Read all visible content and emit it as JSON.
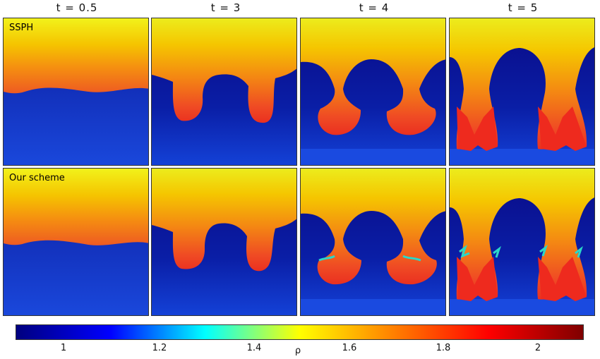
{
  "columns": [
    {
      "time_label": "t = 0.5"
    },
    {
      "time_label": "t = 3"
    },
    {
      "time_label": "t = 4"
    },
    {
      "time_label": "t = 5"
    }
  ],
  "rows": [
    {
      "label": "SSPH"
    },
    {
      "label": "Our scheme"
    }
  ],
  "colorbar": {
    "label": "ρ",
    "ticks": [
      "1",
      "1.2",
      "1.4",
      "1.6",
      "1.8",
      "2"
    ],
    "colors": [
      "#00007f",
      "#0000ff",
      "#00ffff",
      "#ffff00",
      "#ff7f00",
      "#ff0000",
      "#7f0000"
    ]
  }
}
